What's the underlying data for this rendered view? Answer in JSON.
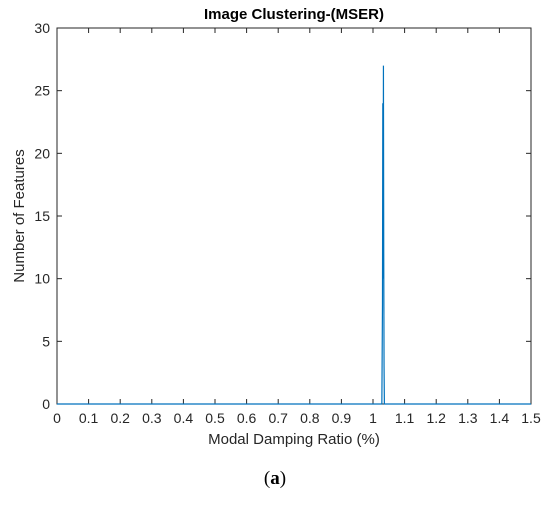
{
  "chart_data": {
    "type": "line",
    "title": "Image Clustering-(MSER)",
    "xlabel": "Modal Damping Ratio (%)",
    "ylabel": "Number of Features",
    "xlim": [
      0,
      1.5
    ],
    "ylim": [
      0,
      30
    ],
    "xticks": [
      "0",
      "0.1",
      "0.2",
      "0.3",
      "0.4",
      "0.5",
      "0.6",
      "0.7",
      "0.8",
      "0.9",
      "1",
      "1.1",
      "1.2",
      "1.3",
      "1.4",
      "1.5"
    ],
    "yticks": [
      "0",
      "5",
      "10",
      "15",
      "20",
      "25",
      "30"
    ],
    "grid": false,
    "line_color": "#0072BD",
    "series": [
      {
        "x": [
          0,
          1.028,
          1.03,
          1.031,
          1.032,
          1.033,
          1.034,
          1.035,
          1.036,
          1.038,
          1.5
        ],
        "y": [
          0,
          0,
          8,
          24,
          10,
          27,
          12,
          3,
          0,
          0,
          0
        ]
      }
    ]
  },
  "caption": {
    "open": "(",
    "letter": "a",
    "close": ")"
  }
}
